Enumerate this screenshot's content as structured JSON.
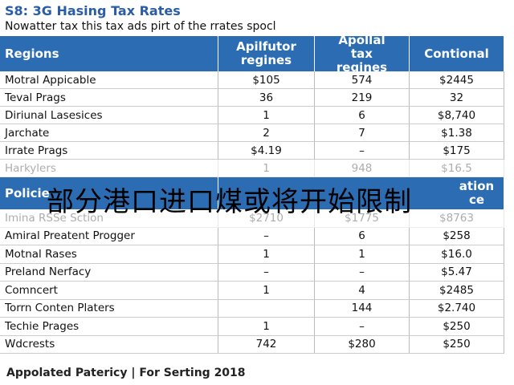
{
  "header": {
    "title": "S8: 3G Hasing Tax Rates",
    "subtitle": "Nowatter tax this tax ads pirt of the rrates spocl"
  },
  "table": {
    "headers": [
      "Regions",
      "Apilfutor regines",
      "Apollal tax regines",
      "Contional"
    ],
    "rows": [
      [
        "Motral Appicable",
        "$105",
        "574",
        "$2445"
      ],
      [
        "Teval Prags",
        "36",
        "219",
        "32"
      ],
      [
        "Diriunal Lasesices",
        "1",
        "6",
        "$8,740"
      ],
      [
        "Jarchate",
        "2",
        "7",
        "$1.38"
      ],
      [
        "Irrate Prags",
        "$4.19",
        "–",
        "$175"
      ],
      [
        "Harkylers",
        "1",
        "948",
        "$16.5"
      ]
    ],
    "section": {
      "label": "Policie",
      "tail": "ation ce"
    },
    "rows2": [
      [
        "Imina RSSe Sction",
        "$2710",
        "$1775",
        "$8763"
      ],
      [
        "Amiral Preatent Progger",
        "–",
        "6",
        "$258"
      ],
      [
        "Motnal Rases",
        "1",
        "1",
        "$16.0"
      ],
      [
        "Preland Nerfacy",
        "–",
        "–",
        "$5.47"
      ],
      [
        "Comncert",
        "1",
        "4",
        "$2485"
      ],
      [
        "Torrn Conten Platers",
        null,
        "144",
        "$2.740"
      ],
      [
        "Techie Prages",
        "1",
        "–",
        "$250"
      ],
      [
        "Wdcrests",
        "742",
        "$280",
        "$250"
      ]
    ]
  },
  "overlay": "部分港口进口煤或将开始限制",
  "footer": "Appolated Patericy | For Serting 2018"
}
